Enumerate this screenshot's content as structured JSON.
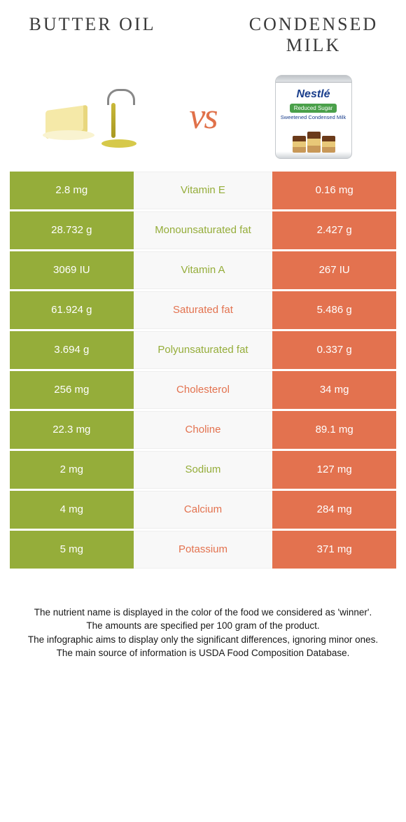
{
  "colors": {
    "left": "#95ad3a",
    "right": "#e3724f",
    "mid_bg": "#f8f8f8",
    "mid_border": "#eeeeee"
  },
  "header": {
    "left_title": "BUTTER OIL",
    "right_title": "CONDENSED MILK",
    "vs": "vs"
  },
  "can": {
    "brand": "Nestlé",
    "badge": "Reduced Sugar",
    "desc": "Sweetened Condensed Milk"
  },
  "rows": [
    {
      "nutrient": "Vitamin E",
      "left": "2.8 mg",
      "right": "0.16 mg",
      "winner": "left"
    },
    {
      "nutrient": "Monounsaturated fat",
      "left": "28.732 g",
      "right": "2.427 g",
      "winner": "left"
    },
    {
      "nutrient": "Vitamin A",
      "left": "3069 IU",
      "right": "267 IU",
      "winner": "left"
    },
    {
      "nutrient": "Saturated fat",
      "left": "61.924 g",
      "right": "5.486 g",
      "winner": "right"
    },
    {
      "nutrient": "Polyunsaturated fat",
      "left": "3.694 g",
      "right": "0.337 g",
      "winner": "left"
    },
    {
      "nutrient": "Cholesterol",
      "left": "256 mg",
      "right": "34 mg",
      "winner": "right"
    },
    {
      "nutrient": "Choline",
      "left": "22.3 mg",
      "right": "89.1 mg",
      "winner": "right"
    },
    {
      "nutrient": "Sodium",
      "left": "2 mg",
      "right": "127 mg",
      "winner": "left"
    },
    {
      "nutrient": "Calcium",
      "left": "4 mg",
      "right": "284 mg",
      "winner": "right"
    },
    {
      "nutrient": "Potassium",
      "left": "5 mg",
      "right": "371 mg",
      "winner": "right"
    }
  ],
  "footer": [
    "The nutrient name is displayed in the color of the food we considered as 'winner'.",
    "The amounts are specified per 100 gram of the product.",
    "The infographic aims to display only the significant differences, ignoring minor ones.",
    "The main source of information is USDA Food Composition Database."
  ]
}
